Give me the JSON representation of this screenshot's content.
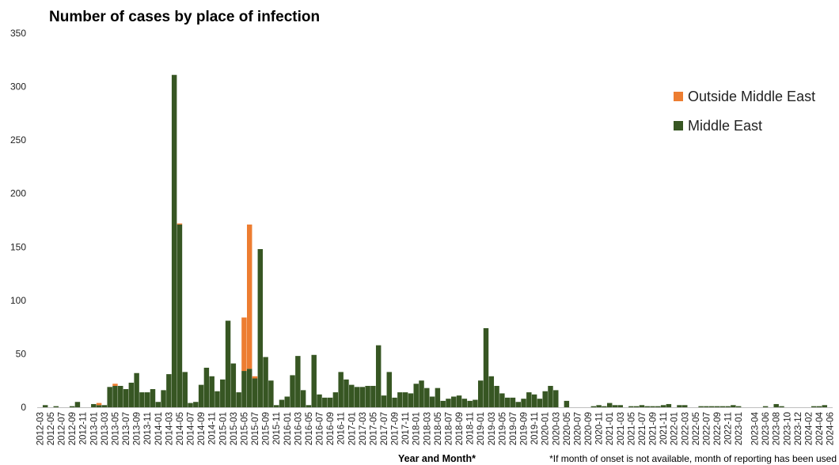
{
  "chart_data": {
    "type": "bar",
    "stacked": true,
    "title": "Number of cases by place of infection",
    "xlabel": "Year and Month*",
    "ylabel": "",
    "note": "*If month of onset is not available, month of reporting has been used",
    "ylim": [
      0,
      350
    ],
    "yticks": [
      0,
      50,
      100,
      150,
      200,
      250,
      300,
      350
    ],
    "grid": false,
    "legend_position": "right",
    "x_start": "2012-03",
    "x_end": "2024-06",
    "x_tick_labels": [
      "2012-03",
      "2012-05",
      "2012-07",
      "2012-09",
      "2012-11",
      "2013-01",
      "2013-03",
      "2013-05",
      "2013-07",
      "2013-09",
      "2013-11",
      "2014-01",
      "2014-03",
      "2014-05",
      "2014-07",
      "2014-09",
      "2014-11",
      "2015-01",
      "2015-03",
      "2015-05",
      "2015-07",
      "2015-09",
      "2015-11",
      "2016-01",
      "2016-03",
      "2016-05",
      "2016-07",
      "2016-09",
      "2016-11",
      "2017-01",
      "2017-03",
      "2017-05",
      "2017-07",
      "2017-09",
      "2017-11",
      "2018-01",
      "2018-03",
      "2018-05",
      "2018-07",
      "2018-09",
      "2018-11",
      "2019-01",
      "2019-03",
      "2019-05",
      "2019-07",
      "2019-09",
      "2019-11",
      "2020-01",
      "2020-03",
      "2020-05",
      "2020-07",
      "2020-09",
      "2020-11",
      "2021-01",
      "2021-03",
      "2021-05",
      "2021-07",
      "2021-09",
      "2021-11",
      "2022-01",
      "2022-03",
      "2022-05",
      "2022-07",
      "2022-09",
      "2022-11",
      "2023-01",
      "2023-04",
      "2023-06",
      "2023-08",
      "2023-10",
      "2023-12",
      "2024-02",
      "2024-04",
      "2024-06"
    ],
    "series": [
      {
        "name": "Middle East",
        "color": "#375623",
        "values": {
          "2012-04": 2,
          "2012-06": 1,
          "2012-09": 1,
          "2012-10": 5,
          "2013-01": 3,
          "2013-02": 2,
          "2013-03": 2,
          "2013-04": 19,
          "2013-05": 20,
          "2013-06": 20,
          "2013-07": 17,
          "2013-08": 23,
          "2013-09": 32,
          "2013-10": 14,
          "2013-11": 14,
          "2013-12": 17,
          "2014-01": 5,
          "2014-02": 16,
          "2014-03": 31,
          "2014-04": 311,
          "2014-05": 171,
          "2014-06": 33,
          "2014-07": 4,
          "2014-08": 5,
          "2014-09": 21,
          "2014-10": 37,
          "2014-11": 29,
          "2014-12": 15,
          "2015-01": 26,
          "2015-02": 81,
          "2015-03": 41,
          "2015-04": 14,
          "2015-05": 34,
          "2015-06": 36,
          "2015-07": 27,
          "2015-08": 148,
          "2015-09": 47,
          "2015-10": 25,
          "2015-11": 2,
          "2015-12": 7,
          "2016-01": 10,
          "2016-02": 30,
          "2016-03": 48,
          "2016-04": 16,
          "2016-05": 2,
          "2016-06": 49,
          "2016-07": 12,
          "2016-08": 9,
          "2016-09": 9,
          "2016-10": 14,
          "2016-11": 33,
          "2016-12": 26,
          "2017-01": 21,
          "2017-02": 19,
          "2017-03": 19,
          "2017-04": 20,
          "2017-05": 20,
          "2017-06": 58,
          "2017-07": 11,
          "2017-08": 33,
          "2017-09": 9,
          "2017-10": 14,
          "2017-11": 14,
          "2017-12": 13,
          "2018-01": 22,
          "2018-02": 25,
          "2018-03": 18,
          "2018-04": 10,
          "2018-05": 18,
          "2018-06": 6,
          "2018-07": 8,
          "2018-08": 10,
          "2018-09": 11,
          "2018-10": 8,
          "2018-11": 6,
          "2018-12": 7,
          "2019-01": 25,
          "2019-02": 74,
          "2019-03": 29,
          "2019-04": 20,
          "2019-05": 13,
          "2019-06": 9,
          "2019-07": 9,
          "2019-08": 5,
          "2019-09": 8,
          "2019-10": 14,
          "2019-11": 12,
          "2019-12": 8,
          "2020-01": 15,
          "2020-02": 20,
          "2020-03": 16,
          "2020-05": 6,
          "2020-10": 1,
          "2020-11": 2,
          "2020-12": 1,
          "2021-01": 4,
          "2021-02": 2,
          "2021-03": 2,
          "2021-05": 1,
          "2021-06": 1,
          "2021-07": 2,
          "2021-08": 1,
          "2021-09": 1,
          "2021-10": 1,
          "2021-11": 2,
          "2021-12": 3,
          "2022-02": 2,
          "2022-03": 2,
          "2022-06": 1,
          "2022-07": 1,
          "2022-08": 1,
          "2022-09": 1,
          "2022-10": 1,
          "2022-11": 1,
          "2022-12": 2,
          "2023-01": 1,
          "2023-06": 1,
          "2023-08": 3,
          "2023-09": 1,
          "2024-03": 1,
          "2024-04": 1,
          "2024-05": 2
        }
      },
      {
        "name": "Outside Middle East",
        "color": "#ed7d31",
        "values": {
          "2013-02": 2,
          "2013-05": 2,
          "2014-05": 1,
          "2015-05": 50,
          "2015-06": 135,
          "2015-07": 2
        }
      }
    ]
  }
}
